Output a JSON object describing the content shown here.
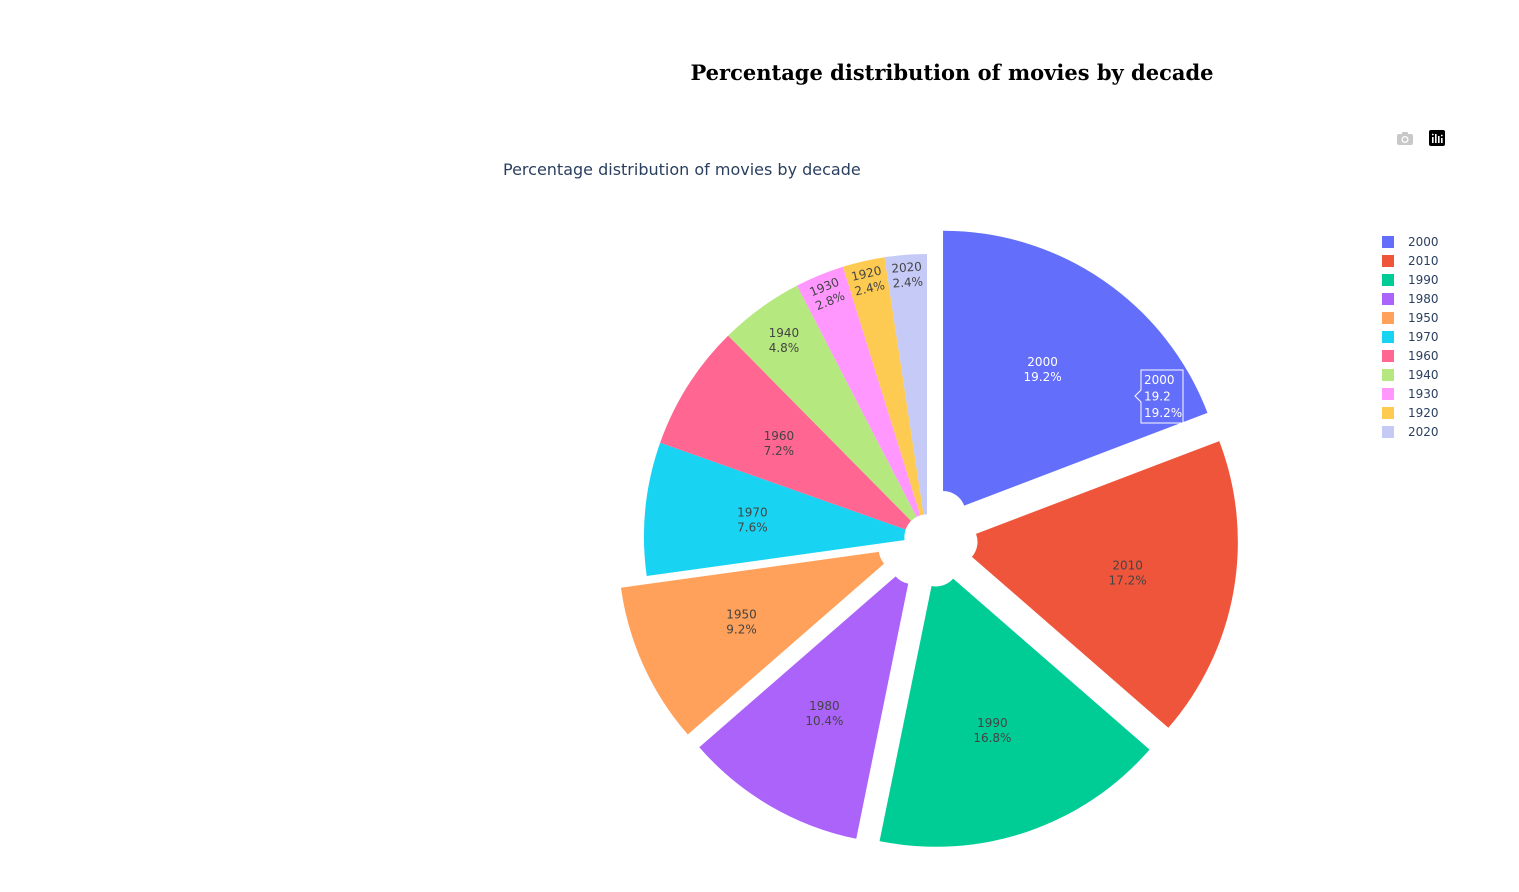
{
  "page": {
    "title": "Percentage distribution of movies by decade"
  },
  "modebar": {
    "icons": [
      "camera-icon",
      "plotly-logo-icon"
    ]
  },
  "hover": {
    "label": "2000",
    "value": "19.2",
    "percent": "19.2%"
  },
  "chart_data": {
    "type": "pie",
    "title": "Percentage distribution of movies by decade",
    "hole": 0.08,
    "legend_position": "right",
    "labels": [
      "2000",
      "2010",
      "1990",
      "1980",
      "1950",
      "1970",
      "1960",
      "1940",
      "1930",
      "1920",
      "2020"
    ],
    "values": [
      19.2,
      17.2,
      16.8,
      10.4,
      9.2,
      7.6,
      7.2,
      4.8,
      2.8,
      2.4,
      2.4
    ],
    "percent_labels": [
      "19.2%",
      "17.2%",
      "16.8%",
      "10.4%",
      "9.2%",
      "7.6%",
      "7.2%",
      "4.8%",
      "2.8%",
      "2.4%",
      "2.4%"
    ],
    "pull": [
      0.1,
      0.1,
      0.1,
      0.1,
      0.1,
      0,
      0,
      0,
      0,
      0,
      0
    ],
    "colors": [
      "#636efa",
      "#EF553B",
      "#00cc96",
      "#ab63fa",
      "#FFA15A",
      "#19d3f3",
      "#FF6692",
      "#B6E880",
      "#FF97FF",
      "#FECB52",
      "#c6caf7"
    ],
    "text_colors": [
      "#ffffff",
      "#444444",
      "#444444",
      "#444444",
      "#444444",
      "#444444",
      "#444444",
      "#444444",
      "#444444",
      "#444444",
      "#444444"
    ],
    "direction": "clockwise"
  }
}
